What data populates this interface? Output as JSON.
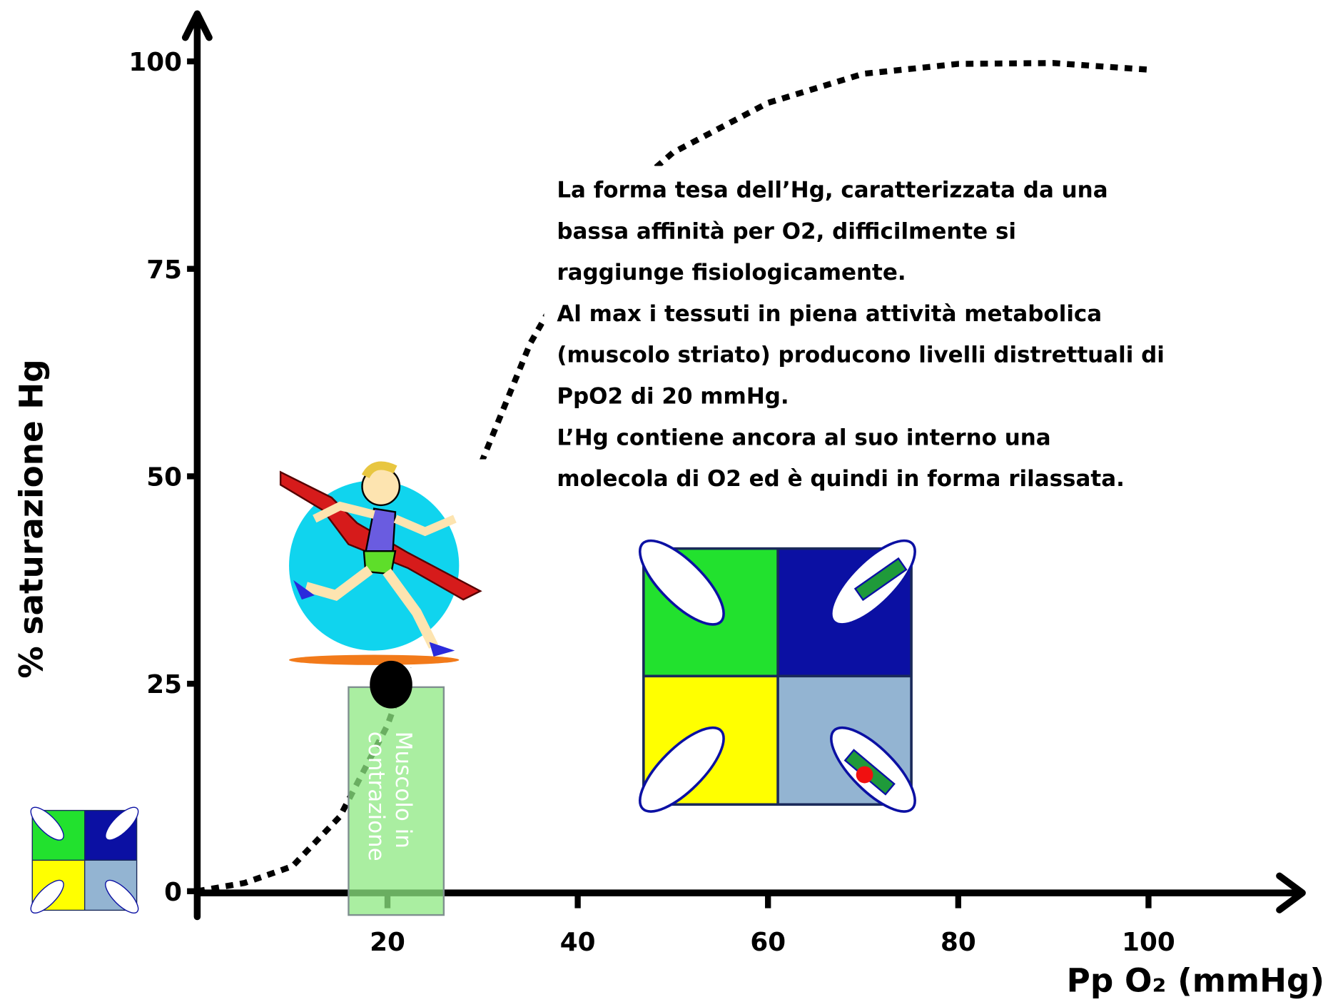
{
  "chart_data": {
    "type": "line",
    "x_label": "Pp O₂ (mmHg)",
    "y_label": "% saturazione Hg",
    "x": [
      0,
      5,
      10,
      15,
      20,
      25,
      30,
      35,
      40,
      45,
      50,
      60,
      70,
      80,
      90,
      100
    ],
    "series": [
      {
        "color": "#000000",
        "values": [
          0,
          1,
          3,
          9,
          20,
          36,
          52,
          66,
          76,
          84,
          89,
          95,
          98.5,
          99.7,
          99.8,
          99
        ]
      }
    ],
    "xlim": [
      0,
      116
    ],
    "ylim": [
      0,
      100
    ],
    "xticks": [
      20,
      40,
      60,
      80,
      100
    ],
    "yticks": [
      0,
      25,
      50,
      75,
      100
    ],
    "annotation": [
      "La forma tesa dell’Hg, caratterizzata da una",
      "bassa affinità per O2, difficilmente si",
      "raggiunge fisiologicamente.",
      "Al max i tessuti in piena attività metabolica",
      "(muscolo striato) producono livelli distrettuali di",
      "PpO2 di 20 mmHg.",
      "L’Hg contiene ancora al suo interno una",
      "molecola di O2 ed è quindi in forma rilassata."
    ],
    "box_label": [
      "Muscolo in",
      "contrazione"
    ]
  }
}
